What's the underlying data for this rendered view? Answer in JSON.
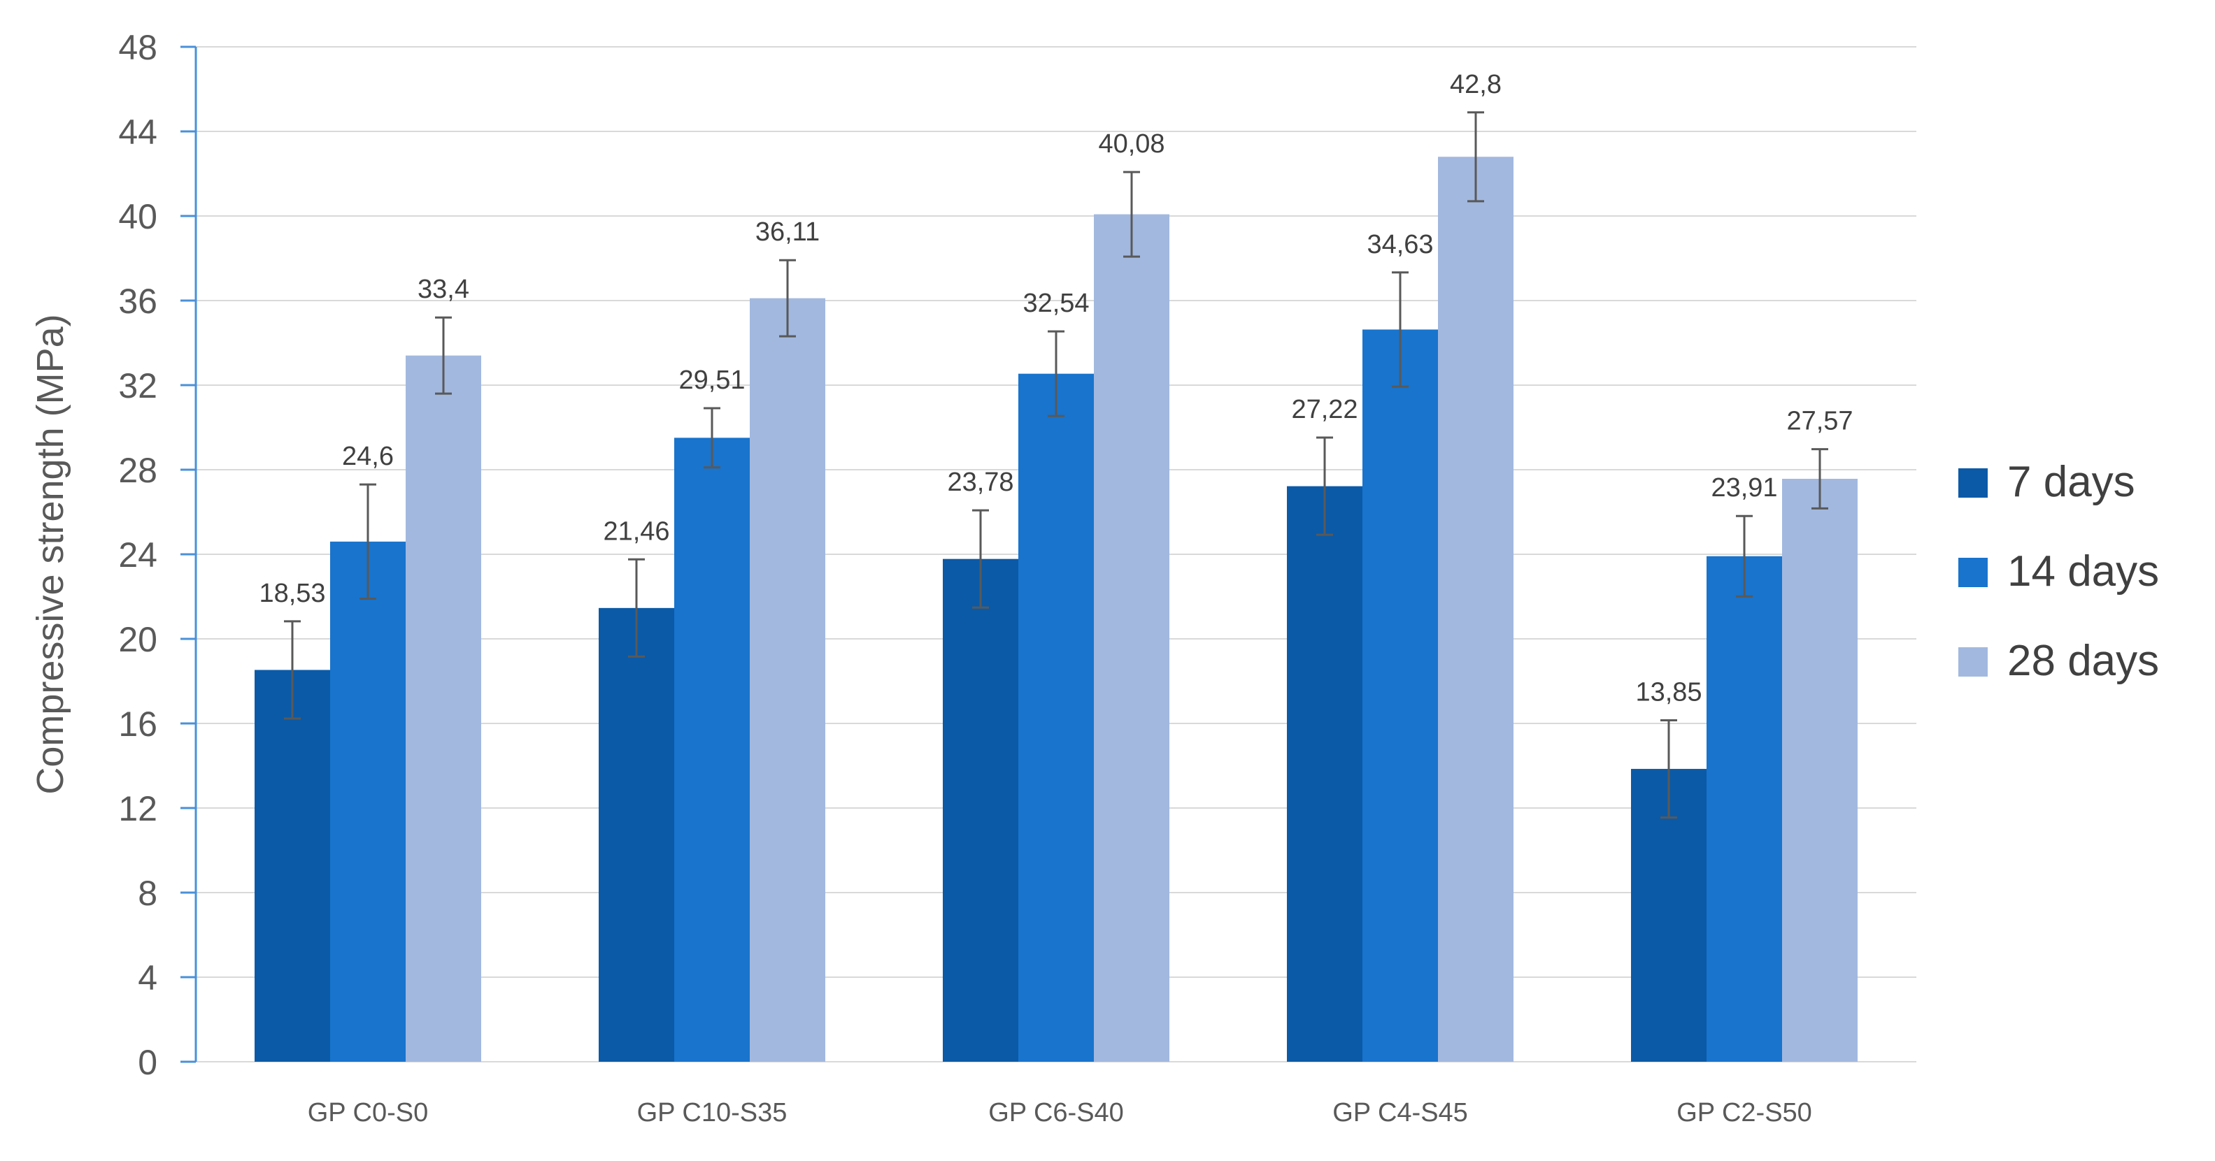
{
  "chart_data": {
    "type": "bar",
    "title": "",
    "xlabel": "",
    "ylabel": "Compressive strength (MPa)",
    "ylim": [
      0,
      48
    ],
    "yticks": [
      0,
      4,
      8,
      12,
      16,
      20,
      24,
      28,
      32,
      36,
      40,
      44,
      48
    ],
    "grid": true,
    "legend_position": "right",
    "categories": [
      "GP C0-S0",
      "GP C10-S35",
      "GP C6-S40",
      "GP C4-S45",
      "GP C2-S50"
    ],
    "series": [
      {
        "name": "7 days",
        "color": "#0b5aa7",
        "values": [
          18.53,
          21.46,
          23.78,
          27.22,
          13.85
        ],
        "labels": [
          "18,53",
          "21,46",
          "23,78",
          "27,22",
          "13,85"
        ],
        "errors": [
          2.3,
          2.3,
          2.3,
          2.3,
          2.3
        ]
      },
      {
        "name": "14 days",
        "color": "#1874cd",
        "values": [
          24.6,
          29.51,
          32.54,
          34.63,
          23.91
        ],
        "labels": [
          "24,6",
          "29,51",
          "32,54",
          "34,63",
          "23,91"
        ],
        "errors": [
          2.7,
          1.4,
          2.0,
          2.7,
          1.9
        ]
      },
      {
        "name": "28 days",
        "color": "#a2b8df",
        "values": [
          33.4,
          36.11,
          40.08,
          42.8,
          27.57
        ],
        "labels": [
          "33,4",
          "36,11",
          "40,08",
          "42,8",
          "27,57"
        ],
        "errors": [
          1.8,
          1.8,
          2.0,
          2.1,
          1.4
        ]
      }
    ]
  }
}
